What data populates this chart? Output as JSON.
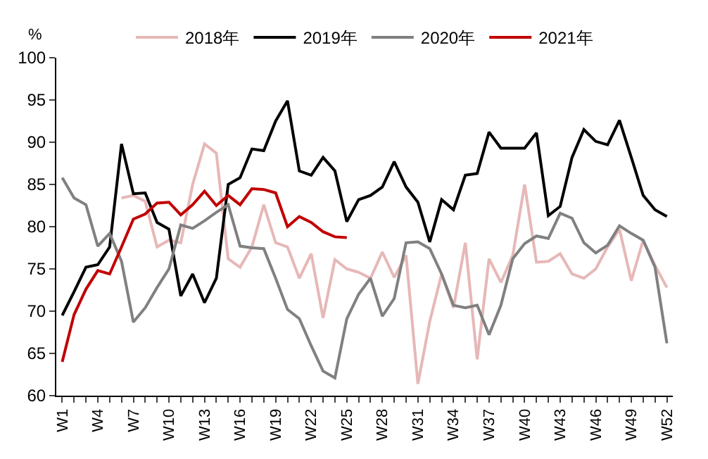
{
  "chart_data": {
    "type": "line",
    "ylabel": "%",
    "categories": [
      "W1",
      null,
      null,
      "W4",
      null,
      null,
      "W7",
      null,
      null,
      "W10",
      null,
      null,
      "W13",
      null,
      null,
      "W16",
      null,
      null,
      "W19",
      null,
      null,
      "W22",
      null,
      null,
      "W25",
      null,
      null,
      "W28",
      null,
      null,
      "W31",
      null,
      null,
      "W34",
      null,
      null,
      "W37",
      null,
      null,
      "W40",
      null,
      null,
      "W43",
      null,
      null,
      "W46",
      null,
      null,
      "W49",
      null,
      null,
      "W52"
    ],
    "series": [
      {
        "name": "2018年",
        "color": "#e6b8b7",
        "values": [
          null,
          null,
          null,
          null,
          null,
          83.4,
          83.7,
          83.0,
          77.6,
          78.4,
          78.1,
          85.0,
          89.8,
          88.7,
          76.2,
          75.2,
          77.6,
          82.6,
          78.1,
          77.6,
          73.9,
          76.8,
          69.2,
          76.1,
          75.0,
          74.6,
          73.9,
          77.0,
          74.0,
          76.6,
          61.4,
          68.8,
          74.4,
          70.4,
          78.1,
          64.3,
          76.2,
          73.4,
          76.6,
          85.0,
          75.8,
          75.9,
          76.8,
          74.4,
          73.9,
          75.0,
          77.6,
          79.7,
          73.6,
          78.4,
          75.4,
          72.8
        ]
      },
      {
        "name": "2019年",
        "color": "#000000",
        "values": [
          69.5,
          72.3,
          75.2,
          75.5,
          77.6,
          89.8,
          83.9,
          84.0,
          80.5,
          79.7,
          71.8,
          74.4,
          71.0,
          73.9,
          85.0,
          85.8,
          89.2,
          89.0,
          92.5,
          94.9,
          86.6,
          86.1,
          88.2,
          86.6,
          80.6,
          83.2,
          83.7,
          84.7,
          87.7,
          84.7,
          82.9,
          78.2,
          83.2,
          82.0,
          86.1,
          86.3,
          91.2,
          89.3,
          89.3,
          89.3,
          91.1,
          81.3,
          82.4,
          88.2,
          91.5,
          90.1,
          89.7,
          92.6,
          88.2,
          83.7,
          82.0,
          81.2
        ]
      },
      {
        "name": "2020年",
        "color": "#808080",
        "values": [
          85.8,
          83.4,
          82.6,
          77.7,
          79.2,
          75.9,
          68.7,
          70.4,
          72.8,
          75.0,
          80.2,
          79.8,
          80.7,
          81.7,
          82.6,
          77.7,
          77.5,
          77.4,
          73.9,
          70.2,
          69.1,
          65.9,
          62.9,
          62.1,
          69.1,
          72.0,
          73.9,
          69.4,
          71.5,
          78.1,
          78.2,
          77.4,
          74.4,
          70.7,
          70.4,
          70.7,
          67.2,
          70.7,
          76.2,
          78.0,
          78.9,
          78.6,
          81.6,
          81.0,
          78.1,
          76.9,
          77.8,
          80.1,
          79.2,
          78.4,
          75.2,
          66.2
        ]
      },
      {
        "name": "2021年",
        "color": "#c00000",
        "values": [
          64.0,
          69.6,
          72.6,
          74.8,
          74.4,
          77.6,
          80.9,
          81.5,
          82.8,
          82.9,
          81.4,
          82.6,
          84.2,
          82.5,
          83.7,
          82.6,
          84.5,
          84.4,
          84.0,
          80.0,
          81.2,
          80.5,
          79.4,
          78.8,
          78.7,
          null,
          null,
          null,
          null,
          null,
          null,
          null,
          null,
          null,
          null,
          null,
          null,
          null,
          null,
          null,
          null,
          null,
          null,
          null,
          null,
          null,
          null,
          null,
          null,
          null,
          null,
          null
        ]
      }
    ],
    "ylim": [
      60,
      100
    ],
    "yticks": [
      60,
      65,
      70,
      75,
      80,
      85,
      90,
      95,
      100
    ],
    "legend": "top",
    "marker": "none",
    "line_style": "solid"
  }
}
